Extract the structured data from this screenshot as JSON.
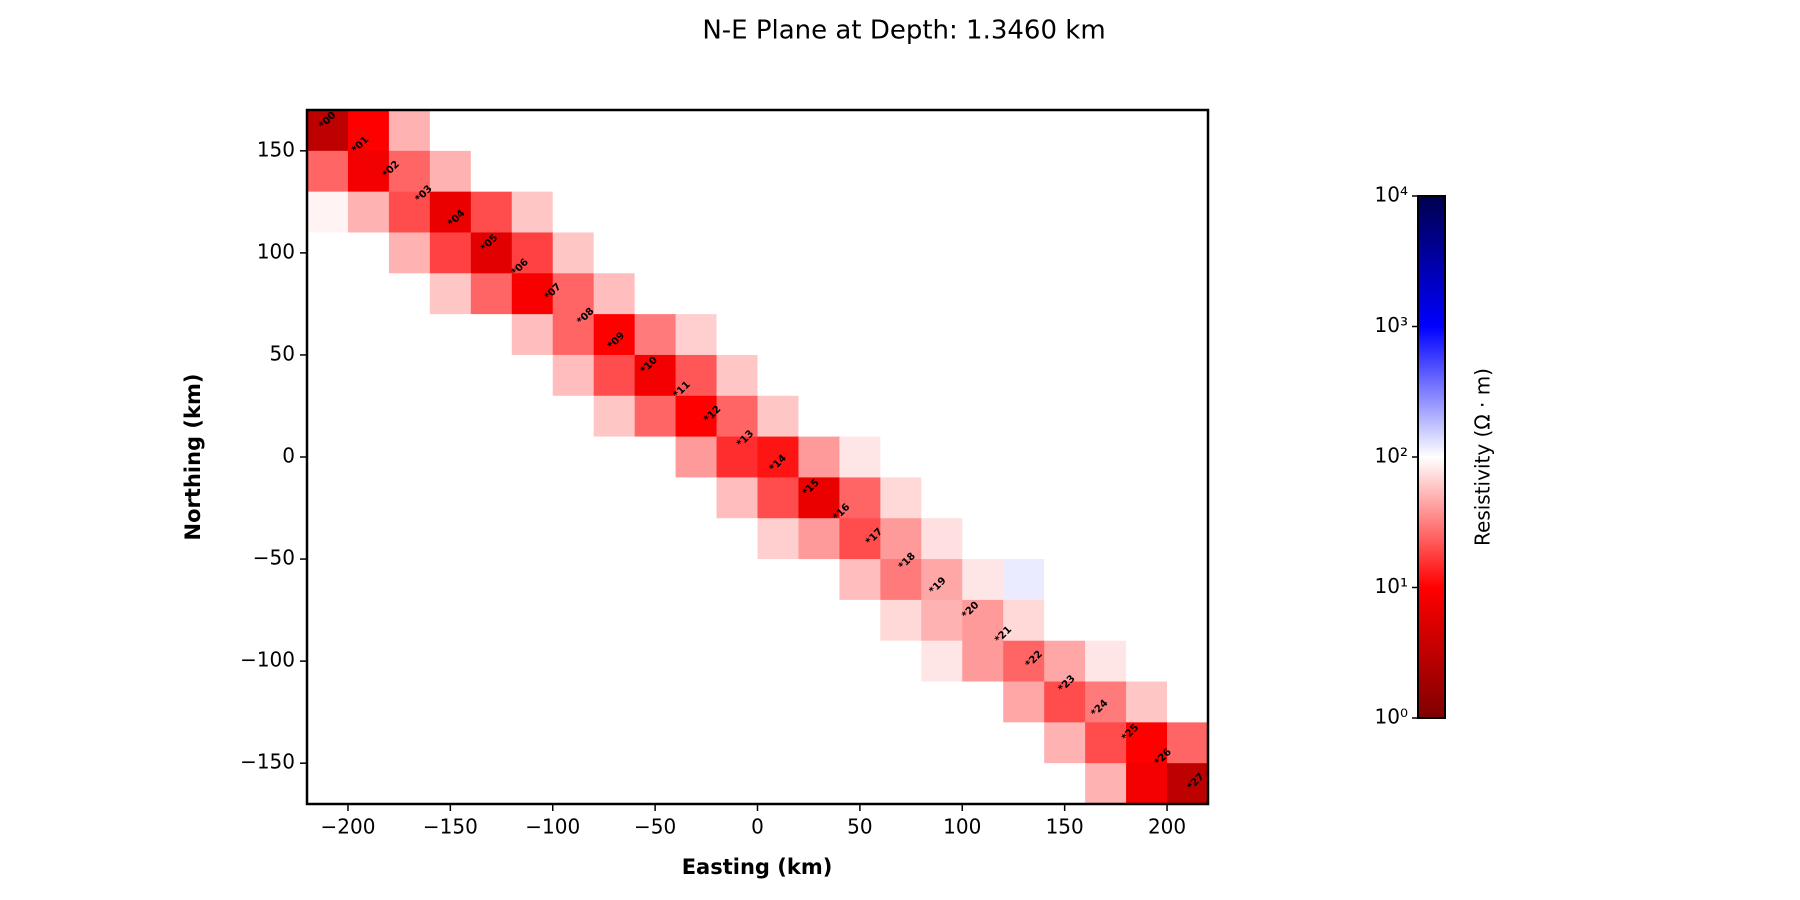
{
  "chart_data": {
    "type": "heatmap",
    "title": "N-E Plane at Depth: 1.3460 km",
    "x_label": "Easting (km)",
    "y_label": "Northing (km)",
    "xlim": [
      -220,
      220
    ],
    "ylim": [
      -170,
      170
    ],
    "xticks": [
      {
        "value": -200,
        "label": "−200"
      },
      {
        "value": -150,
        "label": "−150"
      },
      {
        "value": -100,
        "label": "−100"
      },
      {
        "value": -50,
        "label": "−50"
      },
      0,
      50,
      100,
      150,
      200
    ],
    "yticks": [
      {
        "value": -150,
        "label": "−150"
      },
      {
        "value": -100,
        "label": "−100"
      },
      {
        "value": -50,
        "label": "−50"
      },
      0,
      50,
      100,
      150
    ],
    "x": [
      -210,
      -190,
      -170,
      -150,
      -130,
      -110,
      -90,
      -70,
      -50,
      -30,
      -10,
      10,
      30,
      50,
      70,
      90,
      110,
      130,
      150,
      170,
      190,
      210
    ],
    "y": [
      160,
      140,
      120,
      100,
      80,
      60,
      40,
      20,
      0,
      -20,
      -40,
      -60,
      -80,
      -100,
      -120,
      -140,
      -160
    ],
    "z": [
      [
        3,
        10,
        50,
        100,
        100,
        100,
        100,
        100,
        100,
        100,
        100,
        100,
        100,
        100,
        100,
        100,
        100,
        100,
        100,
        100,
        100,
        100
      ],
      [
        25,
        8,
        25,
        50,
        100,
        100,
        100,
        100,
        100,
        100,
        100,
        100,
        100,
        100,
        100,
        100,
        100,
        100,
        100,
        100,
        100,
        100
      ],
      [
        90,
        50,
        20,
        7,
        20,
        60,
        100,
        100,
        100,
        100,
        100,
        100,
        100,
        100,
        100,
        100,
        100,
        100,
        100,
        100,
        100,
        100
      ],
      [
        100,
        100,
        50,
        18,
        6,
        18,
        60,
        100,
        100,
        100,
        100,
        100,
        100,
        100,
        100,
        100,
        100,
        100,
        100,
        100,
        100,
        100
      ],
      [
        100,
        100,
        100,
        60,
        25,
        9,
        25,
        55,
        100,
        100,
        100,
        100,
        100,
        100,
        100,
        100,
        100,
        100,
        100,
        100,
        100,
        100
      ],
      [
        100,
        100,
        100,
        100,
        100,
        55,
        25,
        10,
        30,
        65,
        100,
        100,
        100,
        100,
        100,
        100,
        100,
        100,
        100,
        100,
        100,
        100
      ],
      [
        100,
        100,
        100,
        100,
        100,
        100,
        55,
        20,
        8,
        22,
        60,
        100,
        100,
        100,
        100,
        100,
        100,
        100,
        100,
        100,
        100,
        100
      ],
      [
        100,
        100,
        100,
        100,
        100,
        100,
        100,
        60,
        25,
        10,
        25,
        60,
        100,
        100,
        100,
        100,
        100,
        100,
        100,
        100,
        100,
        100
      ],
      [
        100,
        100,
        100,
        100,
        100,
        100,
        100,
        100,
        100,
        40,
        15,
        12,
        40,
        80,
        100,
        100,
        100,
        100,
        100,
        100,
        100,
        100
      ],
      [
        100,
        100,
        100,
        100,
        100,
        100,
        100,
        100,
        100,
        100,
        55,
        20,
        7,
        25,
        70,
        100,
        100,
        100,
        100,
        100,
        100,
        100
      ],
      [
        100,
        100,
        100,
        100,
        100,
        100,
        100,
        100,
        100,
        100,
        100,
        65,
        40,
        20,
        40,
        75,
        100,
        100,
        100,
        100,
        100,
        100
      ],
      [
        100,
        100,
        100,
        100,
        100,
        100,
        100,
        100,
        100,
        100,
        100,
        100,
        100,
        55,
        30,
        45,
        80,
        120,
        100,
        100,
        100,
        100
      ],
      [
        100,
        100,
        100,
        100,
        100,
        100,
        100,
        100,
        100,
        100,
        100,
        100,
        100,
        100,
        70,
        50,
        40,
        70,
        100,
        100,
        100,
        100
      ],
      [
        100,
        100,
        100,
        100,
        100,
        100,
        100,
        100,
        100,
        100,
        100,
        100,
        100,
        100,
        100,
        80,
        40,
        25,
        45,
        80,
        100,
        100
      ],
      [
        100,
        100,
        100,
        100,
        100,
        100,
        100,
        100,
        100,
        100,
        100,
        100,
        100,
        100,
        100,
        100,
        100,
        45,
        20,
        30,
        60,
        100
      ],
      [
        100,
        100,
        100,
        100,
        100,
        100,
        100,
        100,
        100,
        100,
        100,
        100,
        100,
        100,
        100,
        100,
        100,
        100,
        50,
        20,
        10,
        25
      ],
      [
        100,
        100,
        100,
        100,
        100,
        100,
        100,
        100,
        100,
        100,
        100,
        100,
        100,
        100,
        100,
        100,
        100,
        100,
        100,
        50,
        8,
        3
      ]
    ],
    "stations": [
      {
        "name": "*00",
        "x": -210,
        "y": 165
      },
      {
        "name": "*01",
        "x": -194,
        "y": 153
      },
      {
        "name": "*02",
        "x": -179,
        "y": 141
      },
      {
        "name": "*03",
        "x": -163,
        "y": 129
      },
      {
        "name": "*04",
        "x": -147,
        "y": 117
      },
      {
        "name": "*05",
        "x": -131,
        "y": 105
      },
      {
        "name": "*06",
        "x": -116,
        "y": 93
      },
      {
        "name": "*07",
        "x": -100,
        "y": 81
      },
      {
        "name": "*08",
        "x": -84,
        "y": 69
      },
      {
        "name": "*09",
        "x": -69,
        "y": 57
      },
      {
        "name": "*10",
        "x": -53,
        "y": 45
      },
      {
        "name": "*11",
        "x": -37,
        "y": 33
      },
      {
        "name": "*12",
        "x": -22,
        "y": 21
      },
      {
        "name": "*13",
        "x": -6,
        "y": 9
      },
      {
        "name": "*14",
        "x": 10,
        "y": -3
      },
      {
        "name": "*15",
        "x": 26,
        "y": -15
      },
      {
        "name": "*16",
        "x": 41,
        "y": -27
      },
      {
        "name": "*17",
        "x": 57,
        "y": -39
      },
      {
        "name": "*18",
        "x": 73,
        "y": -51
      },
      {
        "name": "*19",
        "x": 88,
        "y": -63
      },
      {
        "name": "*20",
        "x": 104,
        "y": -75
      },
      {
        "name": "*21",
        "x": 120,
        "y": -87
      },
      {
        "name": "*22",
        "x": 135,
        "y": -99
      },
      {
        "name": "*23",
        "x": 151,
        "y": -111
      },
      {
        "name": "*24",
        "x": 167,
        "y": -123
      },
      {
        "name": "*25",
        "x": 182,
        "y": -135
      },
      {
        "name": "*26",
        "x": 198,
        "y": -147
      },
      {
        "name": "*27",
        "x": 214,
        "y": -159
      }
    ],
    "colorbar": {
      "label": "Resistivity (Ω · m)",
      "log_scale": true,
      "lim": [
        1,
        10000
      ],
      "ticks": [
        {
          "value": 1,
          "label": "10⁰"
        },
        {
          "value": 10,
          "label": "10¹"
        },
        {
          "value": 100,
          "label": "10²"
        },
        {
          "value": 1000,
          "label": "10³"
        },
        {
          "value": 10000,
          "label": "10⁴"
        }
      ],
      "colors": [
        "#800000",
        "#ff0000",
        "#ffffff",
        "#0000ff",
        "#00004d"
      ]
    }
  }
}
